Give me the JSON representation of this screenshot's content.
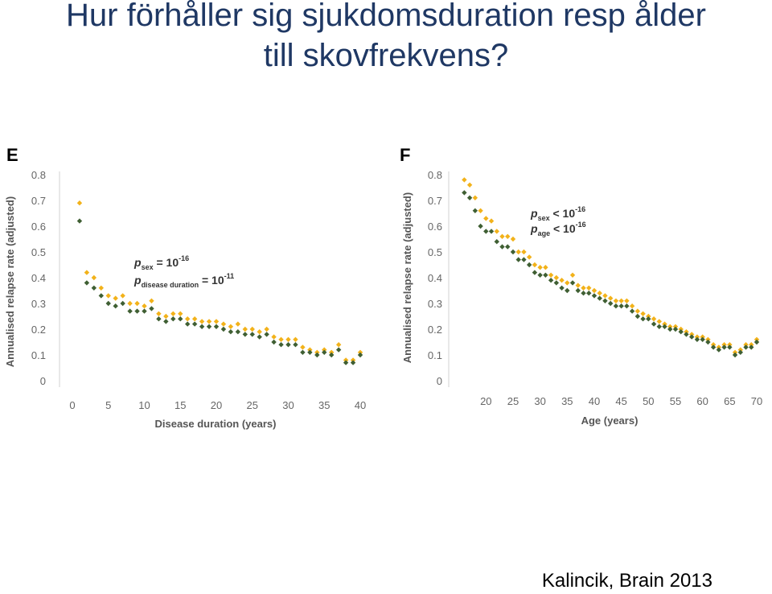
{
  "slide": {
    "title_line1": "Hur förhåller sig sjukdomsduration resp ålder",
    "title_line2": "till skovfrekvens?",
    "citation": "Kalincik, Brain 2013"
  },
  "colors": {
    "title": "#1f3864",
    "series_female": "#f2b21a",
    "series_male": "#3f5f33",
    "axis_text": "#666666",
    "axis_label": "#555555",
    "axis_line": "#d0d0d0"
  },
  "chart_data": [
    {
      "panel": "E",
      "type": "scatter",
      "xlabel": "Disease duration (years)",
      "ylabel": "Annualised relapse rate (adjusted)",
      "xlim": [
        0,
        40
      ],
      "ylim": [
        0,
        0.8
      ],
      "xticks": [
        0,
        5,
        10,
        15,
        20,
        25,
        30,
        35,
        40
      ],
      "yticks": [
        0,
        0.1,
        0.2,
        0.3,
        0.4,
        0.5,
        0.6,
        0.7,
        0.8
      ],
      "ytick_labels": [
        "0",
        "0.1",
        "0.2",
        "0.3",
        "0.4",
        "0.5",
        "0.6",
        "0.7",
        "0.8"
      ],
      "annotation": {
        "line1_main": "p",
        "line1_sub": "sex",
        "line1_rest": " = 10",
        "line1_sup": "-16",
        "line2_main": "p",
        "line2_sub": "disease duration",
        "line2_rest": " = 10",
        "line2_sup": "-11"
      },
      "legend": "none",
      "grid": false,
      "x": [
        1,
        2,
        3,
        4,
        5,
        6,
        7,
        8,
        9,
        10,
        11,
        12,
        13,
        14,
        15,
        16,
        17,
        18,
        19,
        20,
        21,
        22,
        23,
        24,
        25,
        26,
        27,
        28,
        29,
        30,
        31,
        32,
        33,
        34,
        35,
        36,
        37,
        38,
        39,
        40
      ],
      "series": [
        {
          "color_key": "series_female",
          "values": [
            0.69,
            0.42,
            0.4,
            0.36,
            0.33,
            0.32,
            0.33,
            0.3,
            0.3,
            0.29,
            0.31,
            0.26,
            0.25,
            0.26,
            0.26,
            0.24,
            0.24,
            0.23,
            0.23,
            0.23,
            0.22,
            0.21,
            0.22,
            0.2,
            0.2,
            0.19,
            0.2,
            0.17,
            0.16,
            0.16,
            0.16,
            0.13,
            0.12,
            0.11,
            0.12,
            0.11,
            0.14,
            0.08,
            0.08,
            0.11
          ]
        },
        {
          "color_key": "series_male",
          "values": [
            0.62,
            0.38,
            0.36,
            0.33,
            0.3,
            0.29,
            0.3,
            0.27,
            0.27,
            0.27,
            0.28,
            0.24,
            0.23,
            0.24,
            0.24,
            0.22,
            0.22,
            0.21,
            0.21,
            0.21,
            0.2,
            0.19,
            0.19,
            0.18,
            0.18,
            0.17,
            0.18,
            0.15,
            0.14,
            0.14,
            0.14,
            0.11,
            0.11,
            0.1,
            0.11,
            0.1,
            0.12,
            0.07,
            0.07,
            0.1
          ]
        }
      ]
    },
    {
      "panel": "F",
      "type": "scatter",
      "xlabel": "Age (years)",
      "ylabel": "Annualised relapse rate (adjusted)",
      "xlim": [
        15.5,
        70
      ],
      "ylim": [
        0,
        0.8
      ],
      "xticks": [
        20,
        25,
        30,
        35,
        40,
        45,
        50,
        55,
        60,
        65,
        70
      ],
      "yticks": [
        0,
        0.1,
        0.2,
        0.3,
        0.4,
        0.5,
        0.6,
        0.7,
        0.8
      ],
      "ytick_labels": [
        "0",
        "0.1",
        "0.2",
        "0.3",
        "0.4",
        "0.5",
        "0.6",
        "0.7",
        "0.8"
      ],
      "annotation": {
        "line1_main": "p",
        "line1_sub": "sex",
        "line1_rest": " < 10",
        "line1_sup": "-16",
        "line2_main": "p",
        "line2_sub": "age",
        "line2_rest": " < 10",
        "line2_sup": "-16"
      },
      "legend": "none",
      "grid": false,
      "x": [
        16,
        17,
        18,
        19,
        20,
        21,
        22,
        23,
        24,
        25,
        26,
        27,
        28,
        29,
        30,
        31,
        32,
        33,
        34,
        35,
        36,
        37,
        38,
        39,
        40,
        41,
        42,
        43,
        44,
        45,
        46,
        47,
        48,
        49,
        50,
        51,
        52,
        53,
        54,
        55,
        56,
        57,
        58,
        59,
        60,
        61,
        62,
        63,
        64,
        65,
        66,
        67,
        68,
        69,
        70
      ],
      "series": [
        {
          "color_key": "series_female",
          "values": [
            0.78,
            0.76,
            0.71,
            0.66,
            0.63,
            0.62,
            0.58,
            0.56,
            0.56,
            0.55,
            0.5,
            0.5,
            0.48,
            0.45,
            0.44,
            0.44,
            0.41,
            0.4,
            0.39,
            0.38,
            0.41,
            0.37,
            0.36,
            0.36,
            0.35,
            0.34,
            0.33,
            0.32,
            0.31,
            0.31,
            0.31,
            0.29,
            0.27,
            0.26,
            0.25,
            0.24,
            0.23,
            0.22,
            0.21,
            0.21,
            0.2,
            0.19,
            0.18,
            0.17,
            0.17,
            0.16,
            0.14,
            0.13,
            0.14,
            0.14,
            0.11,
            0.12,
            0.14,
            0.14,
            0.16
          ]
        },
        {
          "color_key": "series_male",
          "values": [
            0.73,
            0.71,
            0.66,
            0.6,
            0.58,
            0.58,
            0.54,
            0.52,
            0.52,
            0.5,
            0.47,
            0.47,
            0.45,
            0.42,
            0.41,
            0.41,
            0.39,
            0.38,
            0.36,
            0.35,
            0.38,
            0.35,
            0.34,
            0.34,
            0.33,
            0.32,
            0.31,
            0.3,
            0.29,
            0.29,
            0.29,
            0.27,
            0.25,
            0.24,
            0.24,
            0.22,
            0.21,
            0.21,
            0.2,
            0.2,
            0.19,
            0.18,
            0.17,
            0.16,
            0.16,
            0.15,
            0.13,
            0.12,
            0.13,
            0.13,
            0.1,
            0.11,
            0.13,
            0.13,
            0.15
          ]
        }
      ]
    }
  ]
}
